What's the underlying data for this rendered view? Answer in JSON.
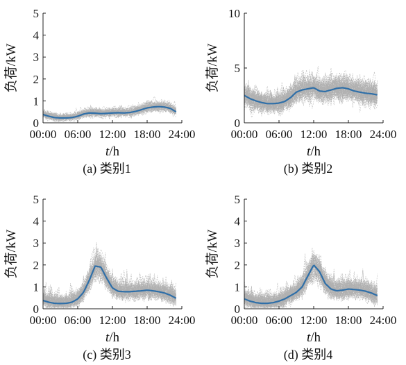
{
  "colors": {
    "mean": "#2f6fa8",
    "samples": "#b0b0b0",
    "axis": "#222222"
  },
  "chart_data": [
    {
      "type": "line",
      "caption": "(a)  类别1",
      "xlabel_italic": "t",
      "xlabel_unit": "/h",
      "ylabel": "负荷/kW",
      "xlim": [
        0,
        24
      ],
      "ylim": [
        0,
        5
      ],
      "xticks": [
        "00:00",
        "06:00",
        "12:00",
        "18:00",
        "24:00"
      ],
      "yticks": [
        "0",
        "1",
        "2",
        "3",
        "4",
        "5"
      ],
      "band": {
        "spread": 0.08,
        "bias": 0.03,
        "spike": 0.2
      },
      "mean_series": {
        "x": [
          0,
          1,
          2,
          3,
          4,
          5,
          6,
          7,
          8,
          9,
          10,
          11,
          12,
          13,
          14,
          15,
          16,
          17,
          18,
          19,
          20,
          21,
          22,
          23
        ],
        "y": [
          0.38,
          0.3,
          0.24,
          0.22,
          0.22,
          0.24,
          0.3,
          0.4,
          0.45,
          0.44,
          0.42,
          0.43,
          0.45,
          0.46,
          0.45,
          0.47,
          0.52,
          0.6,
          0.68,
          0.72,
          0.74,
          0.72,
          0.66,
          0.5
        ]
      }
    },
    {
      "type": "line",
      "caption": "(b)  类别2",
      "xlabel_italic": "t",
      "xlabel_unit": "/h",
      "ylabel": "负荷/kW",
      "xlim": [
        0,
        24
      ],
      "ylim": [
        0,
        10
      ],
      "xticks": [
        "00:00",
        "06:00",
        "12:00",
        "18:00",
        "24:00"
      ],
      "yticks": [
        "0",
        "5",
        "10"
      ],
      "band": {
        "spread": 0.45,
        "bias": 0.05,
        "spike": 1.1
      },
      "mean_series": {
        "x": [
          0,
          1,
          2,
          3,
          4,
          5,
          6,
          7,
          8,
          9,
          10,
          11,
          12,
          13,
          14,
          15,
          16,
          17,
          18,
          19,
          20,
          21,
          22,
          23
        ],
        "y": [
          2.5,
          2.2,
          2.0,
          1.85,
          1.75,
          1.75,
          1.8,
          1.95,
          2.3,
          2.8,
          3.0,
          3.1,
          3.2,
          2.9,
          2.85,
          3.0,
          3.15,
          3.2,
          3.1,
          2.9,
          2.8,
          2.7,
          2.65,
          2.55
        ]
      }
    },
    {
      "type": "line",
      "caption": "(c)  类别3",
      "xlabel_italic": "t",
      "xlabel_unit": "/h",
      "ylabel": "负荷/kW",
      "xlim": [
        0,
        24
      ],
      "ylim": [
        0,
        5
      ],
      "xticks": [
        "00:00",
        "06:00",
        "12:00",
        "18:00",
        "24:00"
      ],
      "yticks": [
        "0",
        "1",
        "2",
        "3",
        "4",
        "5"
      ],
      "band": {
        "spread": 0.18,
        "bias": 0.05,
        "spike": 0.8
      },
      "mean_series": {
        "x": [
          0,
          1,
          2,
          3,
          4,
          5,
          6,
          7,
          8,
          9,
          10,
          11,
          12,
          13,
          14,
          15,
          16,
          17,
          18,
          19,
          20,
          21,
          22,
          23
        ],
        "y": [
          0.38,
          0.3,
          0.25,
          0.24,
          0.25,
          0.3,
          0.45,
          0.75,
          1.3,
          1.95,
          1.9,
          1.4,
          0.95,
          0.8,
          0.78,
          0.78,
          0.8,
          0.82,
          0.85,
          0.82,
          0.78,
          0.72,
          0.62,
          0.48
        ]
      }
    },
    {
      "type": "line",
      "caption": "(d)  类别4",
      "xlabel_italic": "t",
      "xlabel_unit": "/h",
      "ylabel": "负荷/kW",
      "xlim": [
        0,
        24
      ],
      "ylim": [
        0,
        5
      ],
      "xticks": [
        "00:00",
        "06:00",
        "12:00",
        "18:00",
        "24:00"
      ],
      "yticks": [
        "0",
        "1",
        "2",
        "3",
        "4",
        "5"
      ],
      "band": {
        "spread": 0.2,
        "bias": 0.05,
        "spike": 0.8
      },
      "mean_series": {
        "x": [
          0,
          1,
          2,
          3,
          4,
          5,
          6,
          7,
          8,
          9,
          10,
          11,
          12,
          13,
          14,
          15,
          16,
          17,
          18,
          19,
          20,
          21,
          22,
          23
        ],
        "y": [
          0.45,
          0.35,
          0.28,
          0.25,
          0.25,
          0.28,
          0.35,
          0.45,
          0.6,
          0.75,
          1.0,
          1.5,
          2.0,
          1.7,
          1.15,
          0.9,
          0.82,
          0.85,
          0.9,
          0.88,
          0.85,
          0.8,
          0.72,
          0.6
        ]
      }
    }
  ]
}
